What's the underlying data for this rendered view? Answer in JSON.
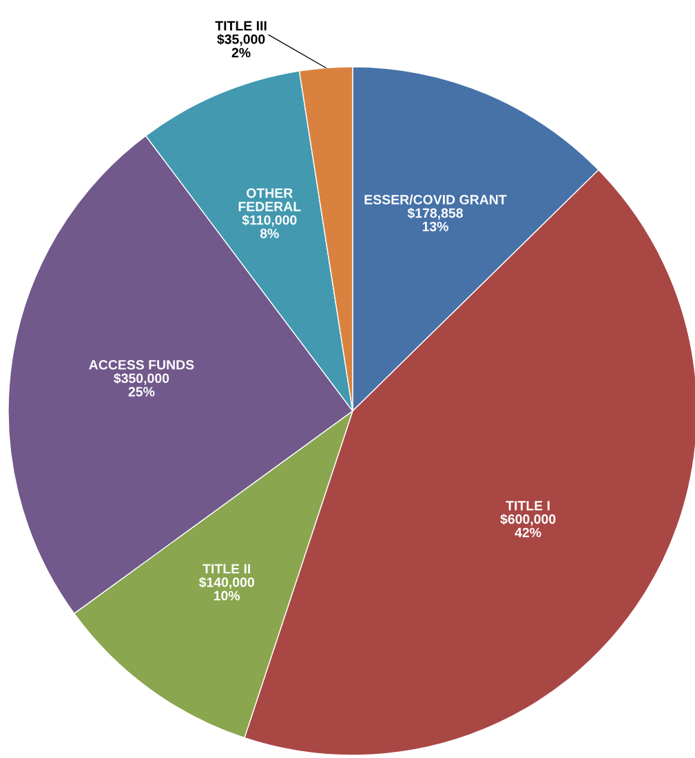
{
  "chart_data": {
    "type": "pie",
    "categories": [
      "ESSER/COVID GRANT",
      "TITLE I",
      "TITLE II",
      "ACCESS FUNDS",
      "OTHER FEDERAL",
      "TITLE III"
    ],
    "values": [
      178858,
      600000,
      140000,
      350000,
      110000,
      35000
    ],
    "colors": [
      "#4672a8",
      "#a94745",
      "#8aa64f",
      "#71598c",
      "#4299b0",
      "#d9823f"
    ],
    "value_labels": [
      "$178,858\n13%",
      "$600,000\n42%",
      "$140,000\n10%",
      "$350,000\n25%",
      "$110,000\n8%",
      "$35,000\n2%"
    ]
  }
}
